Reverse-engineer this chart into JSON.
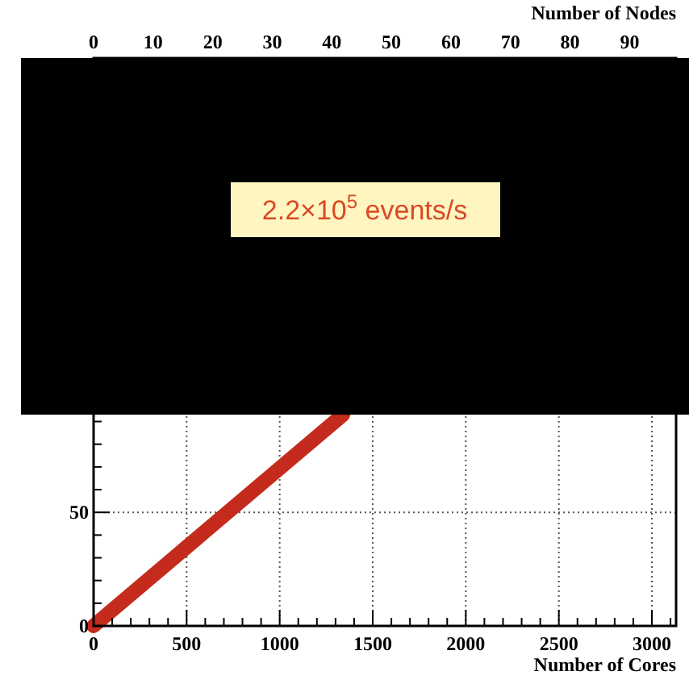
{
  "chart_data": {
    "type": "line",
    "xlabel": "Number of Cores",
    "x2label": "Number of Nodes",
    "xlim": [
      0,
      3130
    ],
    "xticks": [
      0,
      500,
      1000,
      1500,
      2000,
      2500,
      3000
    ],
    "x2lim": [
      0,
      97.8
    ],
    "x2ticks": [
      0,
      10,
      20,
      30,
      40,
      50,
      60,
      70,
      80,
      90
    ],
    "ylim": [
      0,
      250
    ],
    "yticks": [
      0,
      50
    ],
    "grid": true,
    "marker": "none",
    "line_style": "solid",
    "bands": [
      {
        "axis": "y",
        "from": 93,
        "to": 250,
        "color": "#000000"
      }
    ],
    "annotations": [
      "2.2×10$^{5}$ events/s"
    ],
    "series": [
      {
        "color": "#c42b1c",
        "x": [
          0,
          1340
        ],
        "values": [
          0,
          93
        ]
      }
    ]
  }
}
